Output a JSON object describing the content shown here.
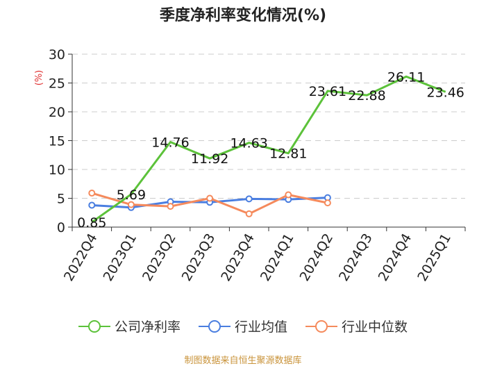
{
  "chart_data": {
    "type": "line",
    "title": "季度净利率变化情况(%)",
    "ylabel": "(%)",
    "xlabel": "",
    "categories": [
      "2022Q4",
      "2023Q1",
      "2023Q2",
      "2023Q3",
      "2023Q4",
      "2024Q1",
      "2024Q2",
      "2024Q3",
      "2024Q4",
      "2025Q1"
    ],
    "ylim": [
      0,
      30
    ],
    "yticks": [
      0,
      5,
      10,
      15,
      20,
      25,
      30
    ],
    "grid": true,
    "legend_position": "bottom",
    "series": [
      {
        "name": "公司净利率",
        "color": "#5cc23a",
        "values": [
          0.85,
          5.69,
          14.76,
          11.92,
          14.63,
          12.81,
          23.61,
          22.88,
          26.11,
          23.46
        ],
        "labels": [
          "0.85",
          "5.69",
          "14.76",
          "11.92",
          "14.63",
          "12.81",
          "23.61",
          "22.88",
          "26.11",
          "23.46"
        ]
      },
      {
        "name": "行业均值",
        "color": "#4a7ee0",
        "values": [
          3.8,
          3.4,
          4.4,
          4.3,
          4.9,
          4.8,
          5.1,
          null,
          null,
          null
        ]
      },
      {
        "name": "行业中位数",
        "color": "#f58a5c",
        "values": [
          5.9,
          3.9,
          3.6,
          5.0,
          2.3,
          5.6,
          4.2,
          null,
          null,
          null
        ]
      }
    ]
  },
  "footer": {
    "source": "制图数据来自恒生聚源数据库"
  }
}
